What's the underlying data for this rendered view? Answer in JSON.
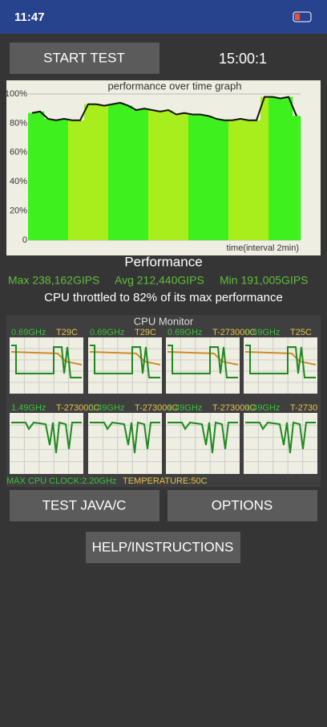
{
  "status_bar": {
    "time": "11:47"
  },
  "start_button": "START TEST",
  "timer": "15:00:1",
  "graph": {
    "title": "performance over time graph",
    "y_labels": [
      "100%",
      "80%",
      "60%",
      "40%",
      "20%",
      "0"
    ],
    "x_label": "time(interval 2min)",
    "values": [
      87,
      88,
      83,
      82,
      83,
      82,
      82,
      93,
      93,
      92,
      93,
      94,
      92,
      89,
      90,
      89,
      88,
      89,
      86,
      87,
      86,
      86,
      85,
      83,
      82,
      82,
      83,
      82,
      82,
      98,
      98,
      97,
      98,
      85
    ],
    "colors": [
      "#3ef01e",
      "#a8ee1c"
    ],
    "line_color": "#111111"
  },
  "performance": {
    "title": "Performance",
    "max": "Max 238,162GIPS",
    "avg": "Avg 212,440GIPS",
    "min": "Min 191,005GIPS",
    "throttle": "CPU throttled to 82% of its max performance"
  },
  "cpu_monitor": {
    "title": "CPU Monitor",
    "cores": [
      {
        "freq": "0.69GHz",
        "temp": "T29C"
      },
      {
        "freq": "0.69GHz",
        "temp": "T29C"
      },
      {
        "freq": "0.69GHz",
        "temp": "T-273000C"
      },
      {
        "freq": "0.69GHz",
        "temp": "T25C"
      },
      {
        "freq": "1.49GHz",
        "temp": "T-273000C"
      },
      {
        "freq": "1.49GHz",
        "temp": "T-273000C"
      },
      {
        "freq": "1.49GHz",
        "temp": "T-273000C"
      },
      {
        "freq": "1.49GHz",
        "temp": "T-2730"
      }
    ],
    "max_clock": "MAX CPU CLOCK:2.20GHz",
    "temperature": "TEMPERATURE:50C"
  },
  "buttons": {
    "test": "TEST JAVA/C",
    "options": "OPTIONS",
    "help": "HELP/INSTRUCTIONS"
  }
}
